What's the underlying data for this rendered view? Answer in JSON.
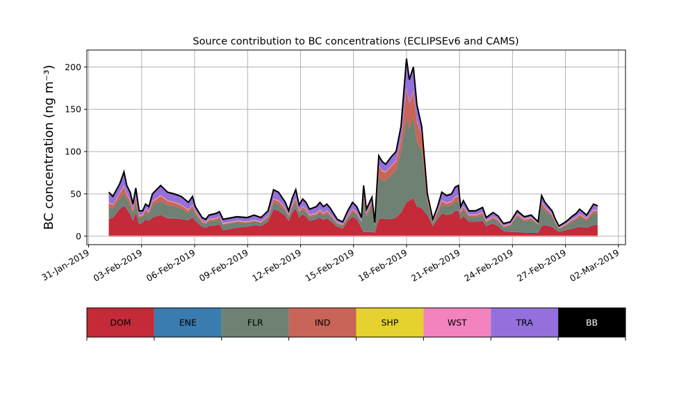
{
  "chart_data": {
    "type": "area",
    "stacked": true,
    "title": "Source contribution to BC concentrations (ECLIPSEv6 and CAMS)",
    "xlabel": "",
    "ylabel": "BC concentration (ng m⁻³)",
    "x_units": "days since 31-Jan-2019",
    "xlim": [
      -0.1,
      30.4
    ],
    "ylim": [
      -10,
      220
    ],
    "grid": true,
    "yticks": [
      0,
      50,
      100,
      150,
      200
    ],
    "xticks": [
      {
        "value": 0,
        "label": "31-Jan-2019"
      },
      {
        "value": 3,
        "label": "03-Feb-2019"
      },
      {
        "value": 6,
        "label": "06-Feb-2019"
      },
      {
        "value": 9,
        "label": "09-Feb-2019"
      },
      {
        "value": 12,
        "label": "12-Feb-2019"
      },
      {
        "value": 15,
        "label": "15-Feb-2019"
      },
      {
        "value": 18,
        "label": "18-Feb-2019"
      },
      {
        "value": 21,
        "label": "21-Feb-2019"
      },
      {
        "value": 24,
        "label": "24-Feb-2019"
      },
      {
        "value": 27,
        "label": "27-Feb-2019"
      },
      {
        "value": 30,
        "label": "02-Mar-2019"
      }
    ],
    "x": [
      1.14,
      1.37,
      1.76,
      2.0,
      2.16,
      2.35,
      2.51,
      2.67,
      2.86,
      3.06,
      3.22,
      3.41,
      3.61,
      4.08,
      4.47,
      4.86,
      5.25,
      5.65,
      5.88,
      6.04,
      6.43,
      6.63,
      6.82,
      7.22,
      7.41,
      7.61,
      8.39,
      8.98,
      9.37,
      9.76,
      10.16,
      10.47,
      10.75,
      11.14,
      11.33,
      11.53,
      11.73,
      11.92,
      12.12,
      12.31,
      12.51,
      12.9,
      13.1,
      13.29,
      13.49,
      13.69,
      14.08,
      14.39,
      14.67,
      14.94,
      15.18,
      15.45,
      15.57,
      15.73,
      16.04,
      16.2,
      16.43,
      16.63,
      16.82,
      17.14,
      17.41,
      17.69,
      18.0,
      18.16,
      18.39,
      18.59,
      18.86,
      19.18,
      19.49,
      19.76,
      20.0,
      20.27,
      20.55,
      20.75,
      20.94,
      21.06,
      21.22,
      21.53,
      21.92,
      22.31,
      22.51,
      22.9,
      23.18,
      23.49,
      23.88,
      24.27,
      24.67,
      25.06,
      25.45,
      25.65,
      25.84,
      26.24,
      26.43,
      26.63,
      27.02,
      27.41,
      27.61,
      27.8,
      28.2,
      28.59,
      28.82
    ],
    "series": [
      {
        "name": "DOM",
        "color": "#c42a37",
        "values": [
          20,
          22,
          32,
          36,
          32,
          26,
          18,
          28,
          14,
          16,
          20,
          18,
          22,
          25,
          21,
          21,
          20,
          19,
          22,
          18,
          11,
          10,
          12,
          13,
          14,
          7,
          10,
          11,
          13,
          12,
          17,
          32,
          30,
          24,
          18,
          28,
          33,
          22,
          26,
          23,
          18,
          20,
          22,
          19,
          21,
          18,
          11,
          9,
          18,
          23,
          20,
          10,
          5,
          5,
          5,
          4,
          20,
          21,
          20,
          20,
          22,
          28,
          40,
          42,
          45,
          35,
          33,
          25,
          12,
          20,
          27,
          25,
          26,
          30,
          30,
          20,
          24,
          17,
          17,
          18,
          12,
          15,
          12,
          6,
          5,
          5,
          4,
          4,
          4,
          12,
          13,
          11,
          8,
          5,
          7,
          9,
          10,
          11,
          10,
          13,
          13
        ]
      },
      {
        "name": "ENE",
        "color": "#3a7bb0",
        "values": [
          0.5,
          0.5,
          0.5,
          0.5,
          0.5,
          0.5,
          0.5,
          0.5,
          0.5,
          0.5,
          0.5,
          0.5,
          0.5,
          0.5,
          0.5,
          0.5,
          0.5,
          0.5,
          0.5,
          0.5,
          0.5,
          0.5,
          0.5,
          0.5,
          0.5,
          0.5,
          0.5,
          0.5,
          0.5,
          0.5,
          0.5,
          0.5,
          0.5,
          0.5,
          0.5,
          0.5,
          0.5,
          0.5,
          0.5,
          0.5,
          0.5,
          0.5,
          0.5,
          0.5,
          0.5,
          0.5,
          0.5,
          0.5,
          0.5,
          0.5,
          0.5,
          0.5,
          0.5,
          0.5,
          0.5,
          0.5,
          0.5,
          0.5,
          0.5,
          0.5,
          0.5,
          0.5,
          0.5,
          0.5,
          0.5,
          0.5,
          0.5,
          0.5,
          0.5,
          0.5,
          0.5,
          0.5,
          0.5,
          0.5,
          0.5,
          0.5,
          0.5,
          0.5,
          0.5,
          0.5,
          0.5,
          0.5,
          0.5,
          0.5,
          0.5,
          0.5,
          0.5,
          0.5,
          0.5,
          0.5,
          0.5,
          0.5,
          0.5,
          0.5,
          0.5,
          0.5,
          0.5,
          0.5,
          0.5,
          0.5,
          0.5
        ]
      },
      {
        "name": "FLR",
        "color": "#6e8172",
        "values": [
          13,
          10,
          12,
          14,
          12,
          10,
          8,
          11,
          7,
          6,
          8,
          8,
          14,
          16,
          15,
          14,
          12,
          8,
          10,
          7,
          4,
          4,
          5,
          5,
          6,
          6,
          6,
          4,
          4,
          3,
          4,
          7,
          7,
          5,
          4,
          5,
          6,
          5,
          5,
          5,
          4,
          4,
          5,
          5,
          5,
          5,
          3,
          3,
          3,
          5,
          5,
          6,
          38,
          18,
          30,
          7,
          50,
          44,
          45,
          52,
          55,
          70,
          100,
          85,
          95,
          75,
          68,
          15,
          3,
          6,
          10,
          10,
          10,
          10,
          12,
          6,
          7,
          5,
          5,
          6,
          4,
          5,
          5,
          4,
          7,
          18,
          13,
          15,
          9,
          22,
          17,
          12,
          7,
          3,
          5,
          8,
          9,
          11,
          8,
          14,
          13
        ]
      },
      {
        "name": "IND",
        "color": "#c96558",
        "values": [
          6,
          4,
          6,
          8,
          5,
          5,
          4,
          6,
          2,
          2,
          3,
          2,
          4,
          6,
          5,
          4,
          4,
          3,
          4,
          3,
          2,
          1,
          2,
          2,
          2,
          1,
          1,
          1,
          1,
          1,
          2,
          4,
          4,
          3,
          2,
          3,
          4,
          2,
          3,
          3,
          2,
          2,
          3,
          2,
          3,
          2,
          1,
          1,
          2,
          3,
          2,
          1,
          6,
          3,
          4,
          1,
          12,
          11,
          10,
          10,
          11,
          15,
          35,
          30,
          30,
          25,
          18,
          4,
          1,
          3,
          4,
          3,
          4,
          5,
          5,
          2,
          3,
          2,
          2,
          3,
          1,
          2,
          2,
          1,
          1,
          2,
          2,
          2,
          1,
          5,
          3,
          2,
          1,
          1,
          1,
          2,
          2,
          3,
          2,
          3,
          3
        ]
      },
      {
        "name": "SHP",
        "color": "#e6d22e",
        "values": [
          0.3,
          0.3,
          0.3,
          0.3,
          0.3,
          0.3,
          0.3,
          0.3,
          0.3,
          0.3,
          0.3,
          0.3,
          0.3,
          0.3,
          0.3,
          0.3,
          0.3,
          0.3,
          0.3,
          0.3,
          0.3,
          0.3,
          0.3,
          0.3,
          0.3,
          0.3,
          0.3,
          0.3,
          0.3,
          0.3,
          0.3,
          0.3,
          0.3,
          0.3,
          0.3,
          0.3,
          0.3,
          0.3,
          0.3,
          0.3,
          0.3,
          0.3,
          0.3,
          0.3,
          0.3,
          0.3,
          0.3,
          0.3,
          0.3,
          0.3,
          0.3,
          0.3,
          0.3,
          0.3,
          0.3,
          0.3,
          0.3,
          0.3,
          0.3,
          0.3,
          0.3,
          0.3,
          0.3,
          0.3,
          0.3,
          0.3,
          0.3,
          0.3,
          0.3,
          0.3,
          0.3,
          0.3,
          0.3,
          0.3,
          0.3,
          0.3,
          0.3,
          0.3,
          0.3,
          0.3,
          0.3,
          0.3,
          0.3,
          0.3,
          0.3,
          0.3,
          0.3,
          0.3,
          0.3,
          0.3,
          0.3,
          0.3,
          0.3,
          0.3,
          0.3,
          0.3,
          0.3,
          0.3,
          0.3,
          0.3,
          0.3
        ]
      },
      {
        "name": "WST",
        "color": "#f283be",
        "values": [
          0.7,
          0.7,
          0.7,
          0.7,
          0.7,
          0.7,
          0.7,
          0.7,
          0.7,
          0.7,
          0.7,
          0.7,
          0.7,
          0.7,
          0.7,
          0.7,
          0.7,
          0.7,
          0.7,
          0.7,
          0.7,
          0.7,
          0.7,
          0.7,
          0.7,
          0.7,
          0.7,
          0.7,
          0.7,
          0.7,
          0.7,
          0.7,
          0.7,
          0.7,
          0.7,
          0.7,
          0.7,
          0.7,
          0.7,
          0.7,
          0.7,
          0.7,
          0.7,
          0.7,
          0.7,
          0.7,
          0.7,
          0.7,
          0.7,
          0.7,
          0.7,
          0.7,
          0.7,
          0.7,
          0.7,
          0.7,
          0.7,
          0.7,
          0.7,
          0.7,
          0.7,
          0.7,
          0.7,
          0.7,
          0.7,
          0.7,
          0.7,
          0.7,
          0.7,
          0.7,
          0.7,
          0.7,
          0.7,
          0.7,
          0.7,
          0.7,
          0.7,
          0.7,
          0.7,
          0.7,
          0.7,
          0.7,
          0.7,
          0.7,
          0.7,
          0.7,
          0.7,
          0.7,
          0.7,
          0.7,
          0.7,
          0.7,
          0.7,
          0.7,
          0.7,
          0.7,
          0.7,
          0.7,
          0.7,
          0.7,
          0.7
        ]
      },
      {
        "name": "TRA",
        "color": "#9370db",
        "values": [
          10.5,
          8.5,
          9.5,
          15.5,
          8.5,
          8.5,
          5.5,
          9.5,
          4.5,
          3.5,
          4.5,
          4.5,
          7.5,
          10.5,
          8.5,
          8.5,
          8.5,
          7.5,
          8.5,
          4.5,
          2.5,
          2.5,
          3.5,
          4.5,
          4.5,
          3.5,
          3.5,
          3.5,
          4.5,
          3.5,
          4.5,
          9.5,
          8.5,
          5.5,
          3.5,
          6.5,
          9.5,
          5.5,
          7.5,
          6.5,
          5.5,
          6.5,
          7.5,
          6.5,
          6.5,
          5.5,
          2.5,
          1.5,
          4.5,
          6.5,
          5.5,
          2.5,
          8.5,
          3.5,
          4.5,
          1.5,
          10.5,
          9.5,
          7.5,
          9.5,
          9.5,
          14.5,
          32.5,
          25.5,
          27.5,
          17.5,
          8.5,
          3.5,
          1.5,
          3.5,
          8.5,
          7.5,
          7.5,
          10.5,
          10.5,
          4.5,
          5.5,
          3.5,
          3.5,
          4.5,
          2.5,
          3.5,
          2.5,
          1.5,
          1.5,
          2.5,
          1.5,
          1.5,
          0.5,
          6.5,
          4.5,
          2.5,
          1.5,
          0.5,
          1.5,
          2.5,
          3.5,
          4.5,
          2.5,
          5.5,
          4.5
        ]
      },
      {
        "name": "BB",
        "color": "#000000",
        "values": [
          1,
          1,
          1,
          1,
          1,
          1,
          1,
          1,
          1,
          1,
          1,
          1,
          1,
          1,
          1,
          1,
          1,
          1,
          1,
          1,
          1,
          1,
          1,
          1,
          1,
          1,
          1,
          1,
          1,
          1,
          1,
          1,
          1,
          1,
          1,
          1,
          1,
          1,
          1,
          1,
          1,
          1,
          1,
          1,
          1,
          1,
          1,
          1,
          1,
          1,
          1,
          1,
          1,
          1,
          1,
          1,
          1,
          1,
          1,
          1,
          1,
          1,
          1,
          1,
          1,
          1,
          1,
          1,
          1,
          1,
          1,
          1,
          1,
          1,
          1,
          1,
          1,
          1,
          1,
          1,
          1,
          1,
          1,
          1,
          1,
          1,
          1,
          1,
          1,
          1,
          1,
          1,
          1,
          1,
          1,
          1,
          1,
          1,
          1,
          1,
          1
        ]
      }
    ],
    "legend": {
      "placement": "bottom",
      "entries": [
        "DOM",
        "ENE",
        "FLR",
        "IND",
        "SHP",
        "WST",
        "TRA",
        "BB"
      ]
    }
  }
}
